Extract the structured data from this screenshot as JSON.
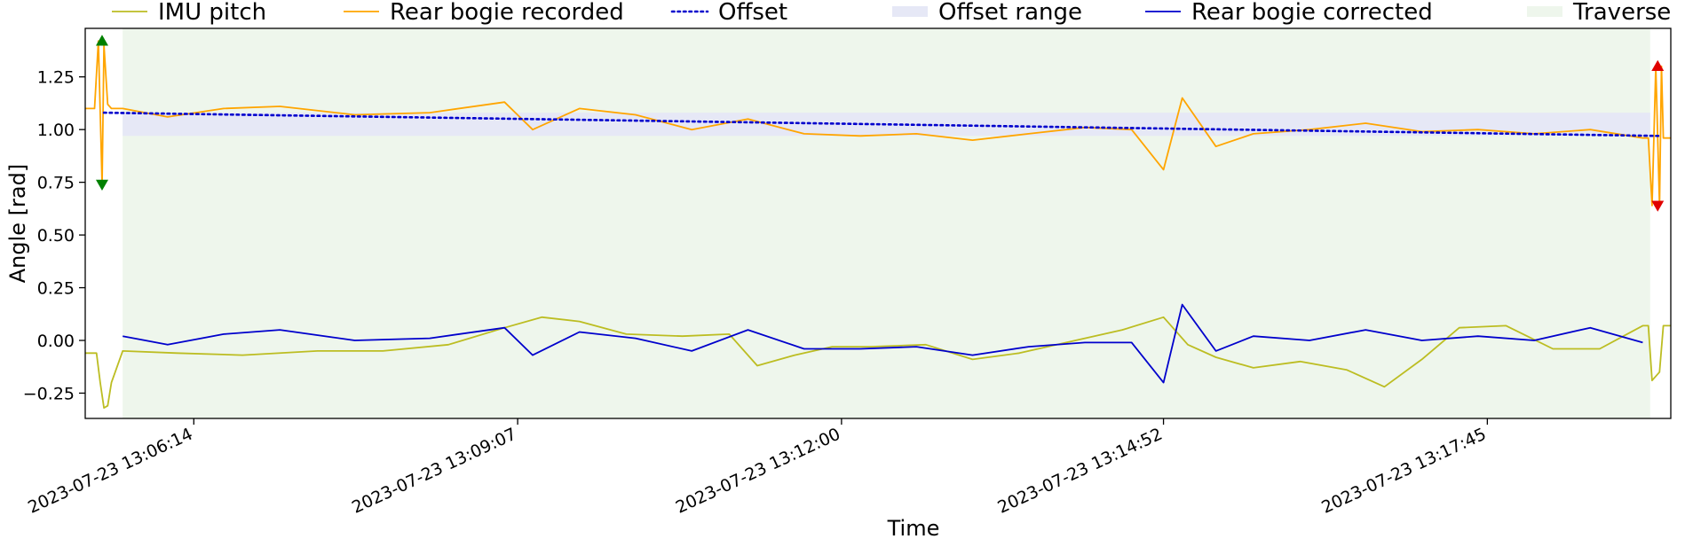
{
  "chart_data": {
    "type": "line",
    "title": "",
    "xlabel": "Time",
    "ylabel": "Angle [rad]",
    "xlim": [
      "2023-07-23 13:05:16",
      "2023-07-23 13:19:23"
    ],
    "ylim": [
      -0.37,
      1.48
    ],
    "yticks": [
      -0.25,
      0.0,
      0.25,
      0.5,
      0.75,
      1.0,
      1.25
    ],
    "ytick_labels": [
      "−0.25",
      "0.00",
      "0.25",
      "0.50",
      "0.75",
      "1.00",
      "1.25"
    ],
    "xticks": [
      "2023-07-23 13:06:14",
      "2023-07-23 13:09:07",
      "2023-07-23 13:12:00",
      "2023-07-23 13:14:52",
      "2023-07-23 13:17:45"
    ],
    "legend_position": "top, outside plot area",
    "traverse": {
      "name": "Traverse",
      "start": "2023-07-23 13:05:36",
      "end": "2023-07-23 13:19:12",
      "color": "#eef6ec"
    },
    "offset_range": {
      "name": "Offset range",
      "min": 0.97,
      "max": 1.08,
      "color": "#e6e8f6"
    },
    "series": [
      {
        "name": "IMU pitch",
        "color": "#bcbd22",
        "style": "solid",
        "x": [
          "2023-07-23 13:05:16",
          "2023-07-23 13:05:22",
          "2023-07-23 13:05:24",
          "2023-07-23 13:05:26",
          "2023-07-23 13:05:28",
          "2023-07-23 13:05:30",
          "2023-07-23 13:05:36",
          "2023-07-23 13:06:05",
          "2023-07-23 13:06:40",
          "2023-07-23 13:07:20",
          "2023-07-23 13:07:55",
          "2023-07-23 13:08:30",
          "2023-07-23 13:09:00",
          "2023-07-23 13:09:20",
          "2023-07-23 13:09:40",
          "2023-07-23 13:10:05",
          "2023-07-23 13:10:35",
          "2023-07-23 13:11:00",
          "2023-07-23 13:11:15",
          "2023-07-23 13:11:35",
          "2023-07-23 13:11:55",
          "2023-07-23 13:12:15",
          "2023-07-23 13:12:45",
          "2023-07-23 13:13:10",
          "2023-07-23 13:13:35",
          "2023-07-23 13:14:05",
          "2023-07-23 13:14:30",
          "2023-07-23 13:14:52",
          "2023-07-23 13:15:05",
          "2023-07-23 13:15:20",
          "2023-07-23 13:15:40",
          "2023-07-23 13:16:05",
          "2023-07-23 13:16:30",
          "2023-07-23 13:16:50",
          "2023-07-23 13:17:10",
          "2023-07-23 13:17:30",
          "2023-07-23 13:17:55",
          "2023-07-23 13:18:20",
          "2023-07-23 13:18:45",
          "2023-07-23 13:19:08",
          "2023-07-23 13:19:11",
          "2023-07-23 13:19:13",
          "2023-07-23 13:19:17",
          "2023-07-23 13:19:19",
          "2023-07-23 13:19:23"
        ],
        "y": [
          -0.06,
          -0.06,
          -0.2,
          -0.32,
          -0.31,
          -0.2,
          -0.05,
          -0.06,
          -0.07,
          -0.05,
          -0.05,
          -0.02,
          0.06,
          0.11,
          0.09,
          0.03,
          0.02,
          0.03,
          -0.12,
          -0.07,
          -0.03,
          -0.03,
          -0.02,
          -0.09,
          -0.06,
          0.0,
          0.05,
          0.11,
          -0.02,
          -0.08,
          -0.13,
          -0.1,
          -0.14,
          -0.22,
          -0.09,
          0.06,
          0.07,
          -0.04,
          -0.04,
          0.07,
          0.07,
          -0.19,
          -0.15,
          0.07,
          0.07
        ]
      },
      {
        "name": "Rear bogie recorded",
        "color": "#ffa500",
        "style": "solid",
        "x": [
          "2023-07-23 13:05:16",
          "2023-07-23 13:05:21",
          "2023-07-23 13:05:23",
          "2023-07-23 13:05:25",
          "2023-07-23 13:05:26",
          "2023-07-23 13:05:28",
          "2023-07-23 13:05:30",
          "2023-07-23 13:05:36",
          "2023-07-23 13:06:00",
          "2023-07-23 13:06:30",
          "2023-07-23 13:07:00",
          "2023-07-23 13:07:40",
          "2023-07-23 13:08:20",
          "2023-07-23 13:09:00",
          "2023-07-23 13:09:15",
          "2023-07-23 13:09:40",
          "2023-07-23 13:10:10",
          "2023-07-23 13:10:40",
          "2023-07-23 13:11:10",
          "2023-07-23 13:11:40",
          "2023-07-23 13:12:10",
          "2023-07-23 13:12:40",
          "2023-07-23 13:13:10",
          "2023-07-23 13:13:40",
          "2023-07-23 13:14:10",
          "2023-07-23 13:14:35",
          "2023-07-23 13:14:52",
          "2023-07-23 13:15:02",
          "2023-07-23 13:15:20",
          "2023-07-23 13:15:40",
          "2023-07-23 13:16:10",
          "2023-07-23 13:16:40",
          "2023-07-23 13:17:10",
          "2023-07-23 13:17:40",
          "2023-07-23 13:18:10",
          "2023-07-23 13:18:40",
          "2023-07-23 13:19:08",
          "2023-07-23 13:19:11",
          "2023-07-23 13:19:13",
          "2023-07-23 13:19:15",
          "2023-07-23 13:19:17",
          "2023-07-23 13:19:18",
          "2023-07-23 13:19:19",
          "2023-07-23 13:19:23"
        ],
        "y": [
          1.1,
          1.1,
          1.42,
          0.74,
          1.4,
          1.12,
          1.1,
          1.1,
          1.06,
          1.1,
          1.11,
          1.07,
          1.08,
          1.13,
          1.0,
          1.1,
          1.07,
          1.0,
          1.05,
          0.98,
          0.97,
          0.98,
          0.95,
          0.98,
          1.01,
          1.0,
          0.81,
          1.15,
          0.92,
          0.98,
          1.0,
          1.03,
          0.99,
          1.0,
          0.98,
          1.0,
          0.96,
          0.96,
          0.64,
          1.3,
          0.64,
          1.3,
          0.96,
          0.96
        ]
      },
      {
        "name": "Offset",
        "color": "#0000cc",
        "style": "dotted",
        "x": [
          "2023-07-23 13:05:26",
          "2023-07-23 13:19:17"
        ],
        "y": [
          1.08,
          0.97
        ]
      },
      {
        "name": "Rear bogie corrected",
        "color": "#0000cc",
        "style": "solid",
        "x": [
          "2023-07-23 13:05:36",
          "2023-07-23 13:06:00",
          "2023-07-23 13:06:30",
          "2023-07-23 13:07:00",
          "2023-07-23 13:07:40",
          "2023-07-23 13:08:20",
          "2023-07-23 13:09:00",
          "2023-07-23 13:09:15",
          "2023-07-23 13:09:40",
          "2023-07-23 13:10:10",
          "2023-07-23 13:10:40",
          "2023-07-23 13:11:10",
          "2023-07-23 13:11:40",
          "2023-07-23 13:12:10",
          "2023-07-23 13:12:40",
          "2023-07-23 13:13:10",
          "2023-07-23 13:13:40",
          "2023-07-23 13:14:10",
          "2023-07-23 13:14:35",
          "2023-07-23 13:14:52",
          "2023-07-23 13:15:02",
          "2023-07-23 13:15:20",
          "2023-07-23 13:15:40",
          "2023-07-23 13:16:10",
          "2023-07-23 13:16:40",
          "2023-07-23 13:17:10",
          "2023-07-23 13:17:40",
          "2023-07-23 13:18:10",
          "2023-07-23 13:18:40",
          "2023-07-23 13:19:08"
        ],
        "y": [
          0.02,
          -0.02,
          0.03,
          0.05,
          0.0,
          0.01,
          0.06,
          -0.07,
          0.04,
          0.01,
          -0.05,
          0.05,
          -0.04,
          -0.04,
          -0.03,
          -0.07,
          -0.03,
          -0.01,
          -0.01,
          -0.2,
          0.17,
          -0.05,
          0.02,
          0.0,
          0.05,
          0.0,
          0.02,
          0.0,
          0.06,
          -0.01
        ]
      }
    ],
    "markers": [
      {
        "name": "max",
        "color": "#008000",
        "shape": "triangle-up",
        "x": "2023-07-23 13:05:25",
        "y": 1.42
      },
      {
        "name": "min",
        "color": "#008000",
        "shape": "triangle-down",
        "x": "2023-07-23 13:05:25",
        "y": 0.74
      },
      {
        "name": "max",
        "color": "#e00000",
        "shape": "triangle-up",
        "x": "2023-07-23 13:19:16",
        "y": 1.3
      },
      {
        "name": "min",
        "color": "#e00000",
        "shape": "triangle-down",
        "x": "2023-07-23 13:19:16",
        "y": 0.64
      }
    ]
  }
}
